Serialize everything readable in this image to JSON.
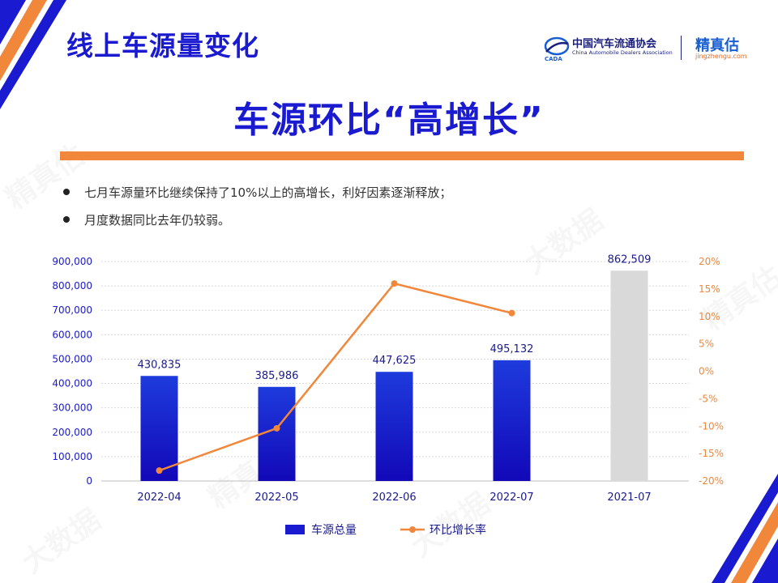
{
  "header": {
    "title": "线上车源量变化"
  },
  "logos": {
    "cada_name": "中国汽车流通协会",
    "cada_en": "China Automobile Dealers Association",
    "jzg_name": "精真估",
    "jzg_url": "jingzhengu.com"
  },
  "main_title": "车源环比“高增长”",
  "bullets": [
    "七月车源量环比继续保持了10%以上的高增长，利好因素逐渐释放；",
    "月度数据同比去年仍较弱。"
  ],
  "colors": {
    "primary_blue": "#1a1ad0",
    "orange": "#f0873a",
    "bar_gray": "#d9d9d9"
  },
  "chart_data": {
    "type": "bar",
    "categories": [
      "2022-04",
      "2022-05",
      "2022-06",
      "2022-07",
      "2021-07"
    ],
    "series": [
      {
        "name": "车源总量",
        "type": "bar",
        "axis": "left",
        "values": [
          430835,
          385986,
          447625,
          495132,
          862509
        ],
        "labels": [
          "430,835",
          "385,986",
          "447,625",
          "495,132",
          "862,509"
        ]
      },
      {
        "name": "环比增长率",
        "type": "line",
        "axis": "right",
        "values": [
          -18.1,
          -10.4,
          16.0,
          10.6,
          null
        ]
      }
    ],
    "left_axis": {
      "ylim": [
        0,
        900000
      ],
      "ticks": [
        "0",
        "100,000",
        "200,000",
        "300,000",
        "400,000",
        "500,000",
        "600,000",
        "700,000",
        "800,000",
        "900,000"
      ]
    },
    "right_axis": {
      "ylim": [
        -20,
        20
      ],
      "ticks": [
        "-20%",
        "-15%",
        "-10%",
        "-5%",
        "0%",
        "5%",
        "10%",
        "15%",
        "20%"
      ]
    },
    "grid": true,
    "legend": "bottom"
  }
}
